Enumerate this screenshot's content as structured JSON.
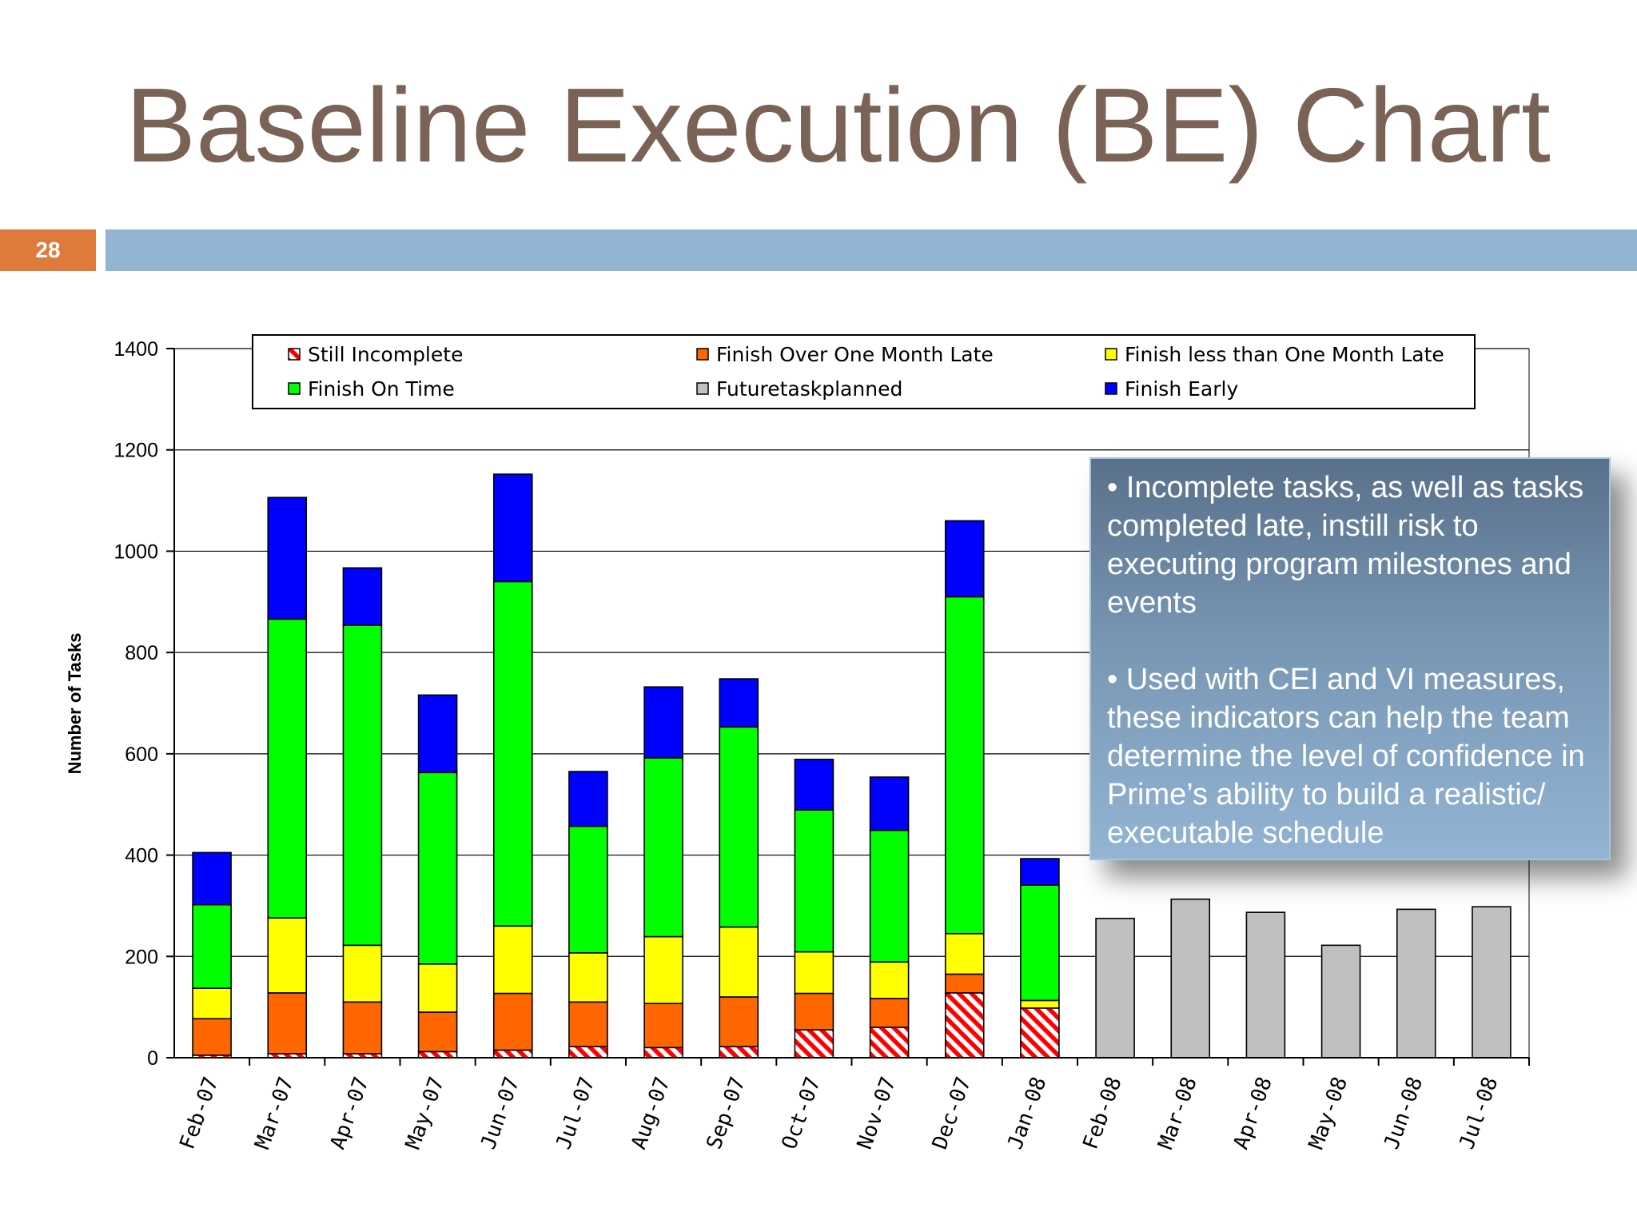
{
  "slide": {
    "title": "Baseline Execution (BE) Chart",
    "number": "28"
  },
  "callout": {
    "points": [
      "• Incomplete tasks, as well as tasks completed late, instill risk to executing program milestones and events",
      "• Used with CEI and VI measures, these indicators can help the team determine the level of confidence in Prime’s ability to build a realistic/ executable schedule"
    ]
  },
  "colors": {
    "title_text": "#7a6256",
    "slide_number_bg": "#de7a3c",
    "title_bar": "#94b4d3"
  },
  "chart_data": {
    "type": "bar",
    "stacked": true,
    "title": "",
    "xlabel": "",
    "ylabel": "Number of Tasks",
    "ylim": [
      0,
      1400
    ],
    "yticks": [
      0,
      200,
      400,
      600,
      800,
      1000,
      1200,
      1400
    ],
    "grid": true,
    "legend_position": "top",
    "categories": [
      "Feb-07",
      "Mar-07",
      "Apr-07",
      "May-07",
      "Jun-07",
      "Jul-07",
      "Aug-07",
      "Sep-07",
      "Oct-07",
      "Nov-07",
      "Dec-07",
      "Jan-08",
      "Feb-08",
      "Mar-08",
      "Apr-08",
      "May-08",
      "Jun-08",
      "Jul-08"
    ],
    "series": [
      {
        "name": "Still Incomplete",
        "color": "#ff0000",
        "pattern": "hatch",
        "values": [
          5,
          8,
          8,
          12,
          15,
          22,
          20,
          22,
          55,
          60,
          128,
          98,
          0,
          0,
          0,
          0,
          0,
          0
        ]
      },
      {
        "name": "Finish Over One Month Late",
        "color": "#ff6600",
        "values": [
          72,
          120,
          102,
          78,
          112,
          88,
          87,
          98,
          72,
          57,
          37,
          0,
          0,
          0,
          0,
          0,
          0,
          0
        ]
      },
      {
        "name": "Finish less than One Month Late",
        "color": "#ffff00",
        "values": [
          60,
          148,
          112,
          95,
          133,
          97,
          132,
          138,
          82,
          72,
          80,
          15,
          0,
          0,
          0,
          0,
          0,
          0
        ]
      },
      {
        "name": "Finish On Time",
        "color": "#00ff00",
        "values": [
          165,
          590,
          632,
          378,
          680,
          250,
          353,
          395,
          280,
          260,
          665,
          228,
          0,
          0,
          0,
          0,
          0,
          0
        ]
      },
      {
        "name": "Futuretaskplanned",
        "color": "#c0c0c0",
        "values": [
          0,
          0,
          0,
          0,
          0,
          0,
          0,
          0,
          0,
          0,
          0,
          0,
          275,
          313,
          287,
          222,
          293,
          298
        ]
      },
      {
        "name": "Finish Early",
        "color": "#0000ff",
        "values": [
          103,
          240,
          113,
          153,
          212,
          108,
          140,
          95,
          100,
          105,
          150,
          52,
          0,
          0,
          0,
          0,
          0,
          0
        ]
      }
    ]
  }
}
